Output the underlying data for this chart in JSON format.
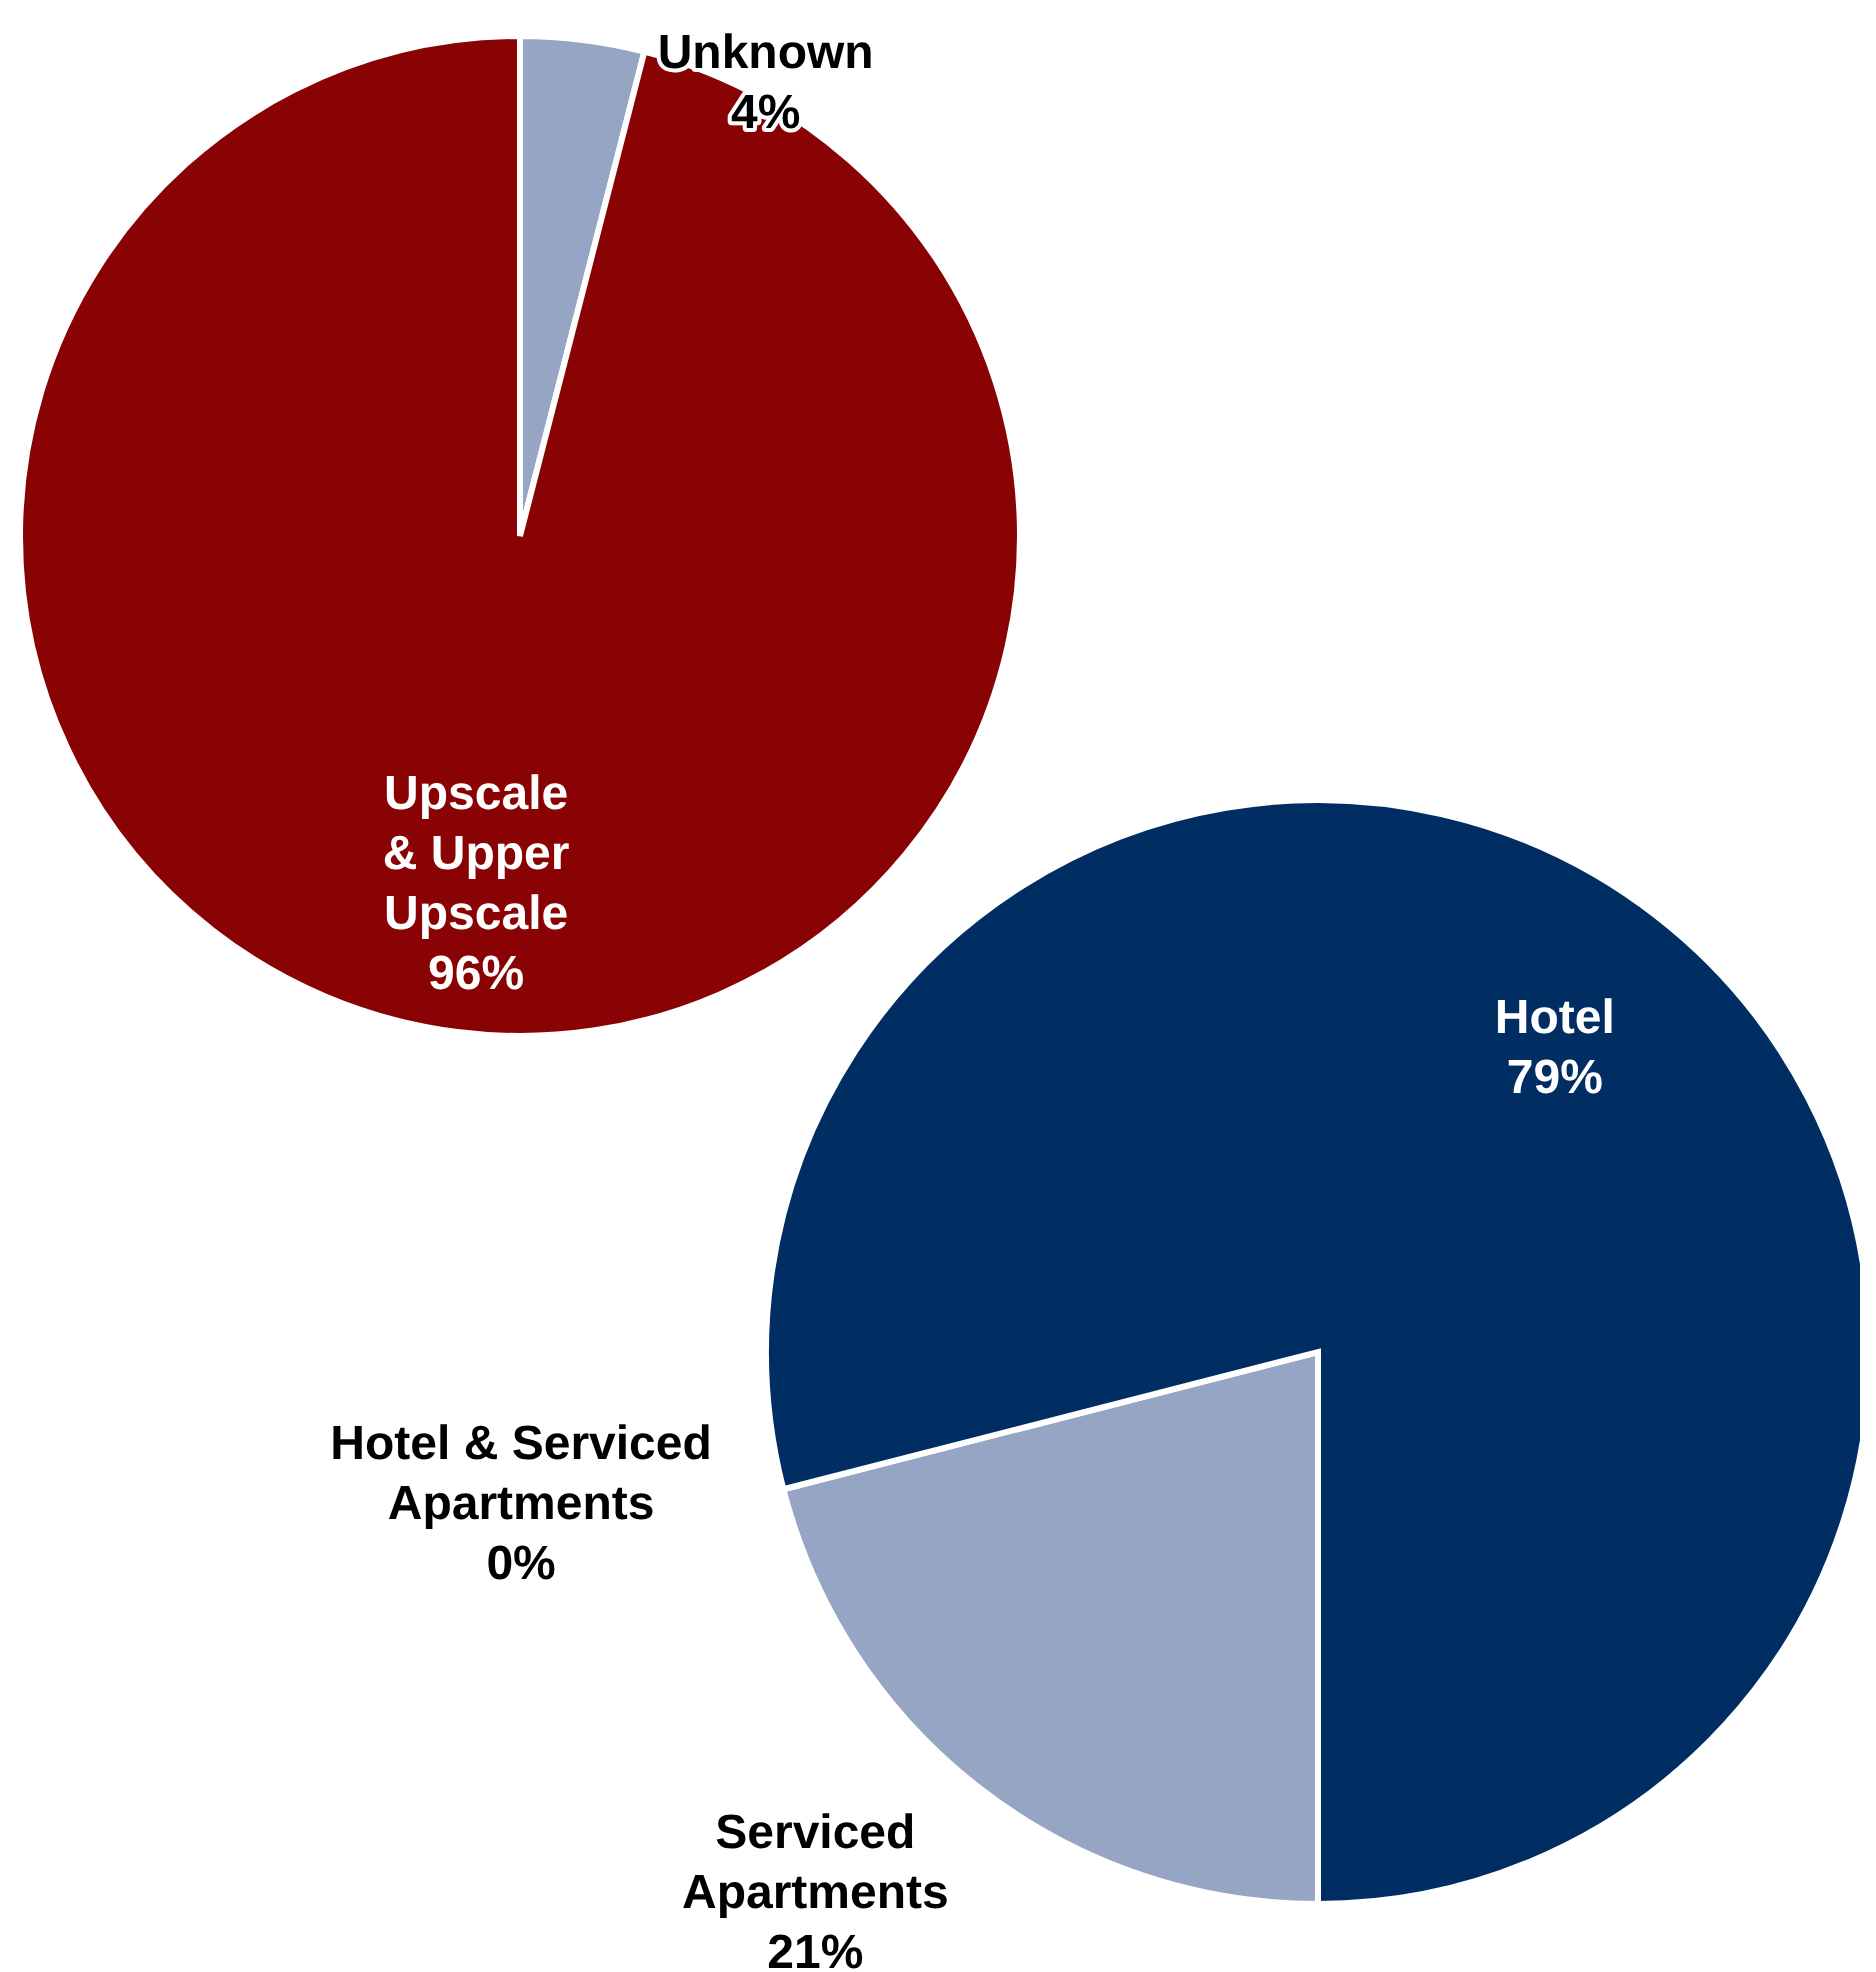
{
  "chart_data": [
    {
      "type": "pie",
      "categories": [
        "Unknown",
        "Upscale & Upper Upscale"
      ],
      "values": [
        4,
        96
      ],
      "colors": [
        "#97a5c4",
        "#8a0304"
      ],
      "value_labels": [
        "4%",
        "96%"
      ]
    },
    {
      "type": "pie",
      "categories": [
        "Serviced Apartments",
        "Hotel & Serviced Apartments",
        "Hotel"
      ],
      "values": [
        21,
        0,
        79
      ],
      "colors": [
        "#97a5c4",
        "#c8cfdf",
        "#002d62"
      ],
      "value_labels": [
        "21%",
        "0%",
        "79%"
      ]
    }
  ]
}
